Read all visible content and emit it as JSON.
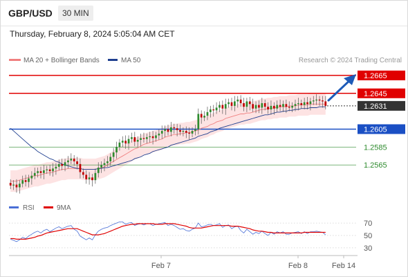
{
  "header": {
    "pair": "GBP/USD",
    "timeframe": "30 MIN",
    "datetime": "Thursday, February 8, 2024 5:05:04 AM CET"
  },
  "legend": {
    "ma20": "MA 20 + Bollinger Bands",
    "ma50": "MA 50",
    "credit": "Research © 2024 Trading Central"
  },
  "rsi_legend": {
    "rsi": "RSI",
    "ma": "9MA"
  },
  "levels": [
    {
      "value": "1.2665",
      "color": "#e00000",
      "style": "tag"
    },
    {
      "value": "1.2645",
      "color": "#e00000",
      "style": "tag"
    },
    {
      "value": "1.2631",
      "color": "#333333",
      "style": "tag"
    },
    {
      "value": "1.2605",
      "color": "#1a4fc4",
      "style": "tag"
    },
    {
      "value": "1.2585",
      "color": "#2e8b2e",
      "style": "text"
    },
    {
      "value": "1.2565",
      "color": "#2e8b2e",
      "style": "text"
    }
  ],
  "rsi_axis": [
    "70",
    "50",
    "30"
  ],
  "x_axis": [
    "Feb 7",
    "Feb 8",
    "Feb 14"
  ],
  "colors": {
    "up_candle": "#2e8b2e",
    "down_candle": "#c00000",
    "ma20": "#f08080",
    "ma50": "#1f3f8f",
    "band_fill": "#fde3e3",
    "rsi": "#4a6fd6",
    "rsi_ma": "#e00000",
    "arrow": "#1e5bb8"
  },
  "chart_data": {
    "type": "candlestick",
    "timeframe": "30 MIN",
    "price_range": [
      1.2528,
      1.2675
    ],
    "resistance": [
      1.2665,
      1.2645
    ],
    "last_price": 1.2631,
    "pivot": 1.2605,
    "support": [
      1.2585,
      1.2565
    ],
    "x_ticks": [
      "Feb 7",
      "Feb 8",
      "Feb 14"
    ],
    "close": [
      1.2542,
      1.2543,
      1.254,
      1.2544,
      1.2548,
      1.2546,
      1.255,
      1.2553,
      1.2556,
      1.2558,
      1.2556,
      1.2559,
      1.256,
      1.2558,
      1.2561,
      1.2563,
      1.2566,
      1.2564,
      1.2568,
      1.257,
      1.2572,
      1.2569,
      1.2566,
      1.2557,
      1.2554,
      1.2549,
      1.2551,
      1.2548,
      1.2556,
      1.2562,
      1.2565,
      1.2567,
      1.2569,
      1.2574,
      1.2579,
      1.2585,
      1.259,
      1.2592,
      1.2589,
      1.2594,
      1.2596,
      1.2591,
      1.2593,
      1.2595,
      1.2594,
      1.2596,
      1.2597,
      1.2595,
      1.2598,
      1.26,
      1.2603,
      1.2605,
      1.2602,
      1.2607,
      1.2606,
      1.2604,
      1.2602,
      1.2603,
      1.2601,
      1.26,
      1.2603,
      1.2605,
      1.2622,
      1.2618,
      1.262,
      1.2624,
      1.2627,
      1.2626,
      1.2629,
      1.2632,
      1.2628,
      1.2633,
      1.2635,
      1.2631,
      1.2636,
      1.2638,
      1.2634,
      1.263,
      1.2636,
      1.2633,
      1.2628,
      1.2632,
      1.2629,
      1.2634,
      1.263,
      1.2627,
      1.2631,
      1.2628,
      1.2632,
      1.263,
      1.2633,
      1.263,
      1.2629,
      1.2631,
      1.2633,
      1.2634,
      1.2632,
      1.2635,
      1.2633,
      1.2636,
      1.2637,
      1.2638,
      1.2637,
      1.2636,
      1.2631
    ],
    "ma20": [
      1.2547,
      1.2547,
      1.2547,
      1.2548,
      1.2549,
      1.255,
      1.2551,
      1.2552,
      1.2553,
      1.2553,
      1.2554,
      1.2555,
      1.2556,
      1.2556,
      1.2557,
      1.2558,
      1.2559,
      1.256,
      1.256,
      1.2561,
      1.2561,
      1.2561,
      1.2561,
      1.2561,
      1.256,
      1.256,
      1.256,
      1.256,
      1.256,
      1.2561,
      1.2562,
      1.2563,
      1.2565,
      1.2567,
      1.2569,
      1.2571,
      1.2573,
      1.2575,
      1.2577,
      1.2579,
      1.2581,
      1.2583,
      1.2584,
      1.2586,
      1.2588,
      1.2589,
      1.259,
      1.2591,
      1.2592,
      1.2593,
      1.2594,
      1.2596,
      1.2597,
      1.2598,
      1.2599,
      1.2599,
      1.26,
      1.26,
      1.2601,
      1.2601,
      1.2602,
      1.2603,
      1.2604,
      1.2606,
      1.2607,
      1.2608,
      1.261,
      1.2611,
      1.2613,
      1.2614,
      1.2615,
      1.2617,
      1.2618,
      1.2619,
      1.262,
      1.2621,
      1.2622,
      1.2622,
      1.2623,
      1.2623,
      1.2624,
      1.2625,
      1.2626,
      1.2627,
      1.2627,
      1.2628,
      1.2628,
      1.2629,
      1.2629,
      1.263,
      1.263,
      1.263,
      1.2631,
      1.2631,
      1.2631,
      1.2632,
      1.2632,
      1.2632,
      1.2632,
      1.2633,
      1.2633,
      1.2633,
      1.2633,
      1.2633,
      1.2633
    ],
    "ma50": [
      1.2606,
      1.2603,
      1.26,
      1.2597,
      1.2594,
      1.2591,
      1.2588,
      1.2585,
      1.2583,
      1.258,
      1.2578,
      1.2576,
      1.2574,
      1.2572,
      1.2571,
      1.2569,
      1.2568,
      1.2566,
      1.2565,
      1.2564,
      1.2563,
      1.2562,
      1.2561,
      1.2561,
      1.256,
      1.256,
      1.256,
      1.256,
      1.256,
      1.2561,
      1.2561,
      1.2562,
      1.2562,
      1.2563,
      1.2564,
      1.2565,
      1.2566,
      1.2567,
      1.2568,
      1.2569,
      1.257,
      1.2572,
      1.2573,
      1.2574,
      1.2576,
      1.2577,
      1.2578,
      1.258,
      1.2581,
      1.2582,
      1.2583,
      1.2584,
      1.2585,
      1.2587,
      1.2588,
      1.2589,
      1.259,
      1.2591,
      1.2592,
      1.2593,
      1.2594,
      1.2595,
      1.2597,
      1.2598,
      1.2599,
      1.26,
      1.2602,
      1.2603,
      1.2604,
      1.2606,
      1.2607,
      1.2608,
      1.2609,
      1.261,
      1.2611,
      1.2612,
      1.2613,
      1.2614,
      1.2615,
      1.2616,
      1.2617,
      1.2618,
      1.2619,
      1.262,
      1.2621,
      1.2621,
      1.2622,
      1.2623,
      1.2624,
      1.2624,
      1.2625,
      1.2625,
      1.2626,
      1.2626,
      1.2627,
      1.2627,
      1.2628,
      1.2628,
      1.2628,
      1.2629,
      1.2629,
      1.2629,
      1.263,
      1.263,
      1.263
    ],
    "rsi": [
      44,
      42,
      40,
      43,
      47,
      45,
      49,
      52,
      55,
      57,
      54,
      58,
      60,
      56,
      59,
      62,
      64,
      61,
      63,
      65,
      66,
      60,
      57,
      49,
      46,
      43,
      46,
      43,
      51,
      57,
      60,
      62,
      63,
      66,
      68,
      70,
      72,
      72,
      68,
      70,
      71,
      66,
      68,
      69,
      67,
      69,
      69,
      66,
      68,
      69,
      70,
      71,
      66,
      68,
      66,
      63,
      60,
      61,
      58,
      57,
      60,
      62,
      70,
      64,
      65,
      67,
      68,
      66,
      67,
      69,
      63,
      66,
      67,
      61,
      64,
      65,
      58,
      54,
      60,
      56,
      52,
      55,
      53,
      57,
      53,
      50,
      55,
      52,
      56,
      54,
      56,
      52,
      52,
      54,
      55,
      56,
      53,
      56,
      53,
      56,
      56,
      57,
      56,
      55,
      51
    ],
    "rsi_ma": [
      45,
      45,
      44,
      44,
      44,
      44,
      45,
      46,
      47,
      49,
      50,
      52,
      54,
      55,
      56,
      57,
      58,
      59,
      60,
      61,
      61,
      61,
      61,
      59,
      57,
      55,
      53,
      51,
      51,
      51,
      52,
      53,
      55,
      57,
      59,
      61,
      63,
      65,
      66,
      67,
      68,
      68,
      69,
      69,
      69,
      69,
      69,
      69,
      68,
      68,
      68,
      69,
      69,
      69,
      69,
      68,
      67,
      66,
      65,
      63,
      62,
      62,
      62,
      62,
      63,
      64,
      65,
      66,
      66,
      66,
      66,
      66,
      66,
      65,
      65,
      65,
      64,
      63,
      62,
      61,
      59,
      58,
      57,
      57,
      56,
      55,
      55,
      54,
      54,
      54,
      54,
      54,
      54,
      54,
      54,
      54,
      54,
      55,
      55,
      55,
      55,
      55,
      55,
      55,
      55
    ]
  }
}
